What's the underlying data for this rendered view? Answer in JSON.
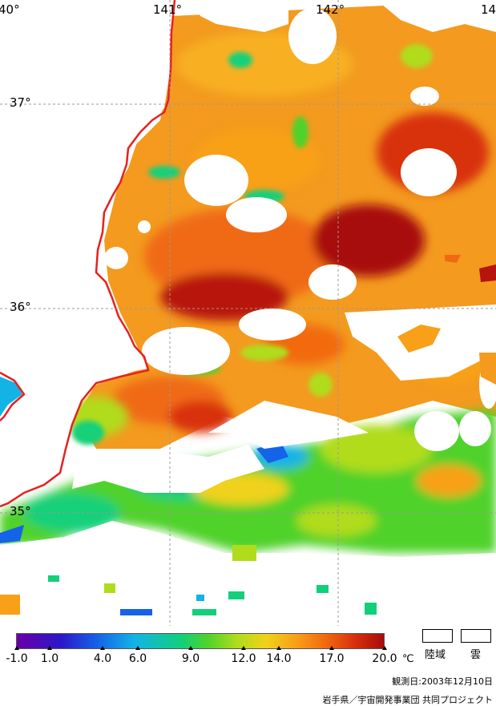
{
  "map": {
    "lon_labels": [
      "40°",
      "141°",
      "142°",
      "14"
    ],
    "lat_labels": [
      "37°",
      "36°",
      "35°"
    ],
    "land_color": "#ffffff",
    "coast_color": "#e8201f",
    "grid_style": "dashed-gray",
    "cloud_color": "#ffffff"
  },
  "colorbar": {
    "ticks": [
      "-1.0",
      "1.0",
      "4.0",
      "6.0",
      "9.0",
      "12.0",
      "14.0",
      "17.0",
      "20.0"
    ],
    "unit": "℃",
    "gradient": [
      "#6a00a8",
      "#2c17c9",
      "#1463e8",
      "#13b3e6",
      "#12d07a",
      "#50d22a",
      "#b0dc1c",
      "#f0d21a",
      "#f8a018",
      "#f26a10",
      "#d8300c",
      "#a80c0c"
    ]
  },
  "legend": {
    "land_label": "陸域",
    "cloud_label": "雲"
  },
  "observation": "観測日:2003年12月10日",
  "credit": "岩手県／宇宙開発事業団 共同プロジェクト"
}
